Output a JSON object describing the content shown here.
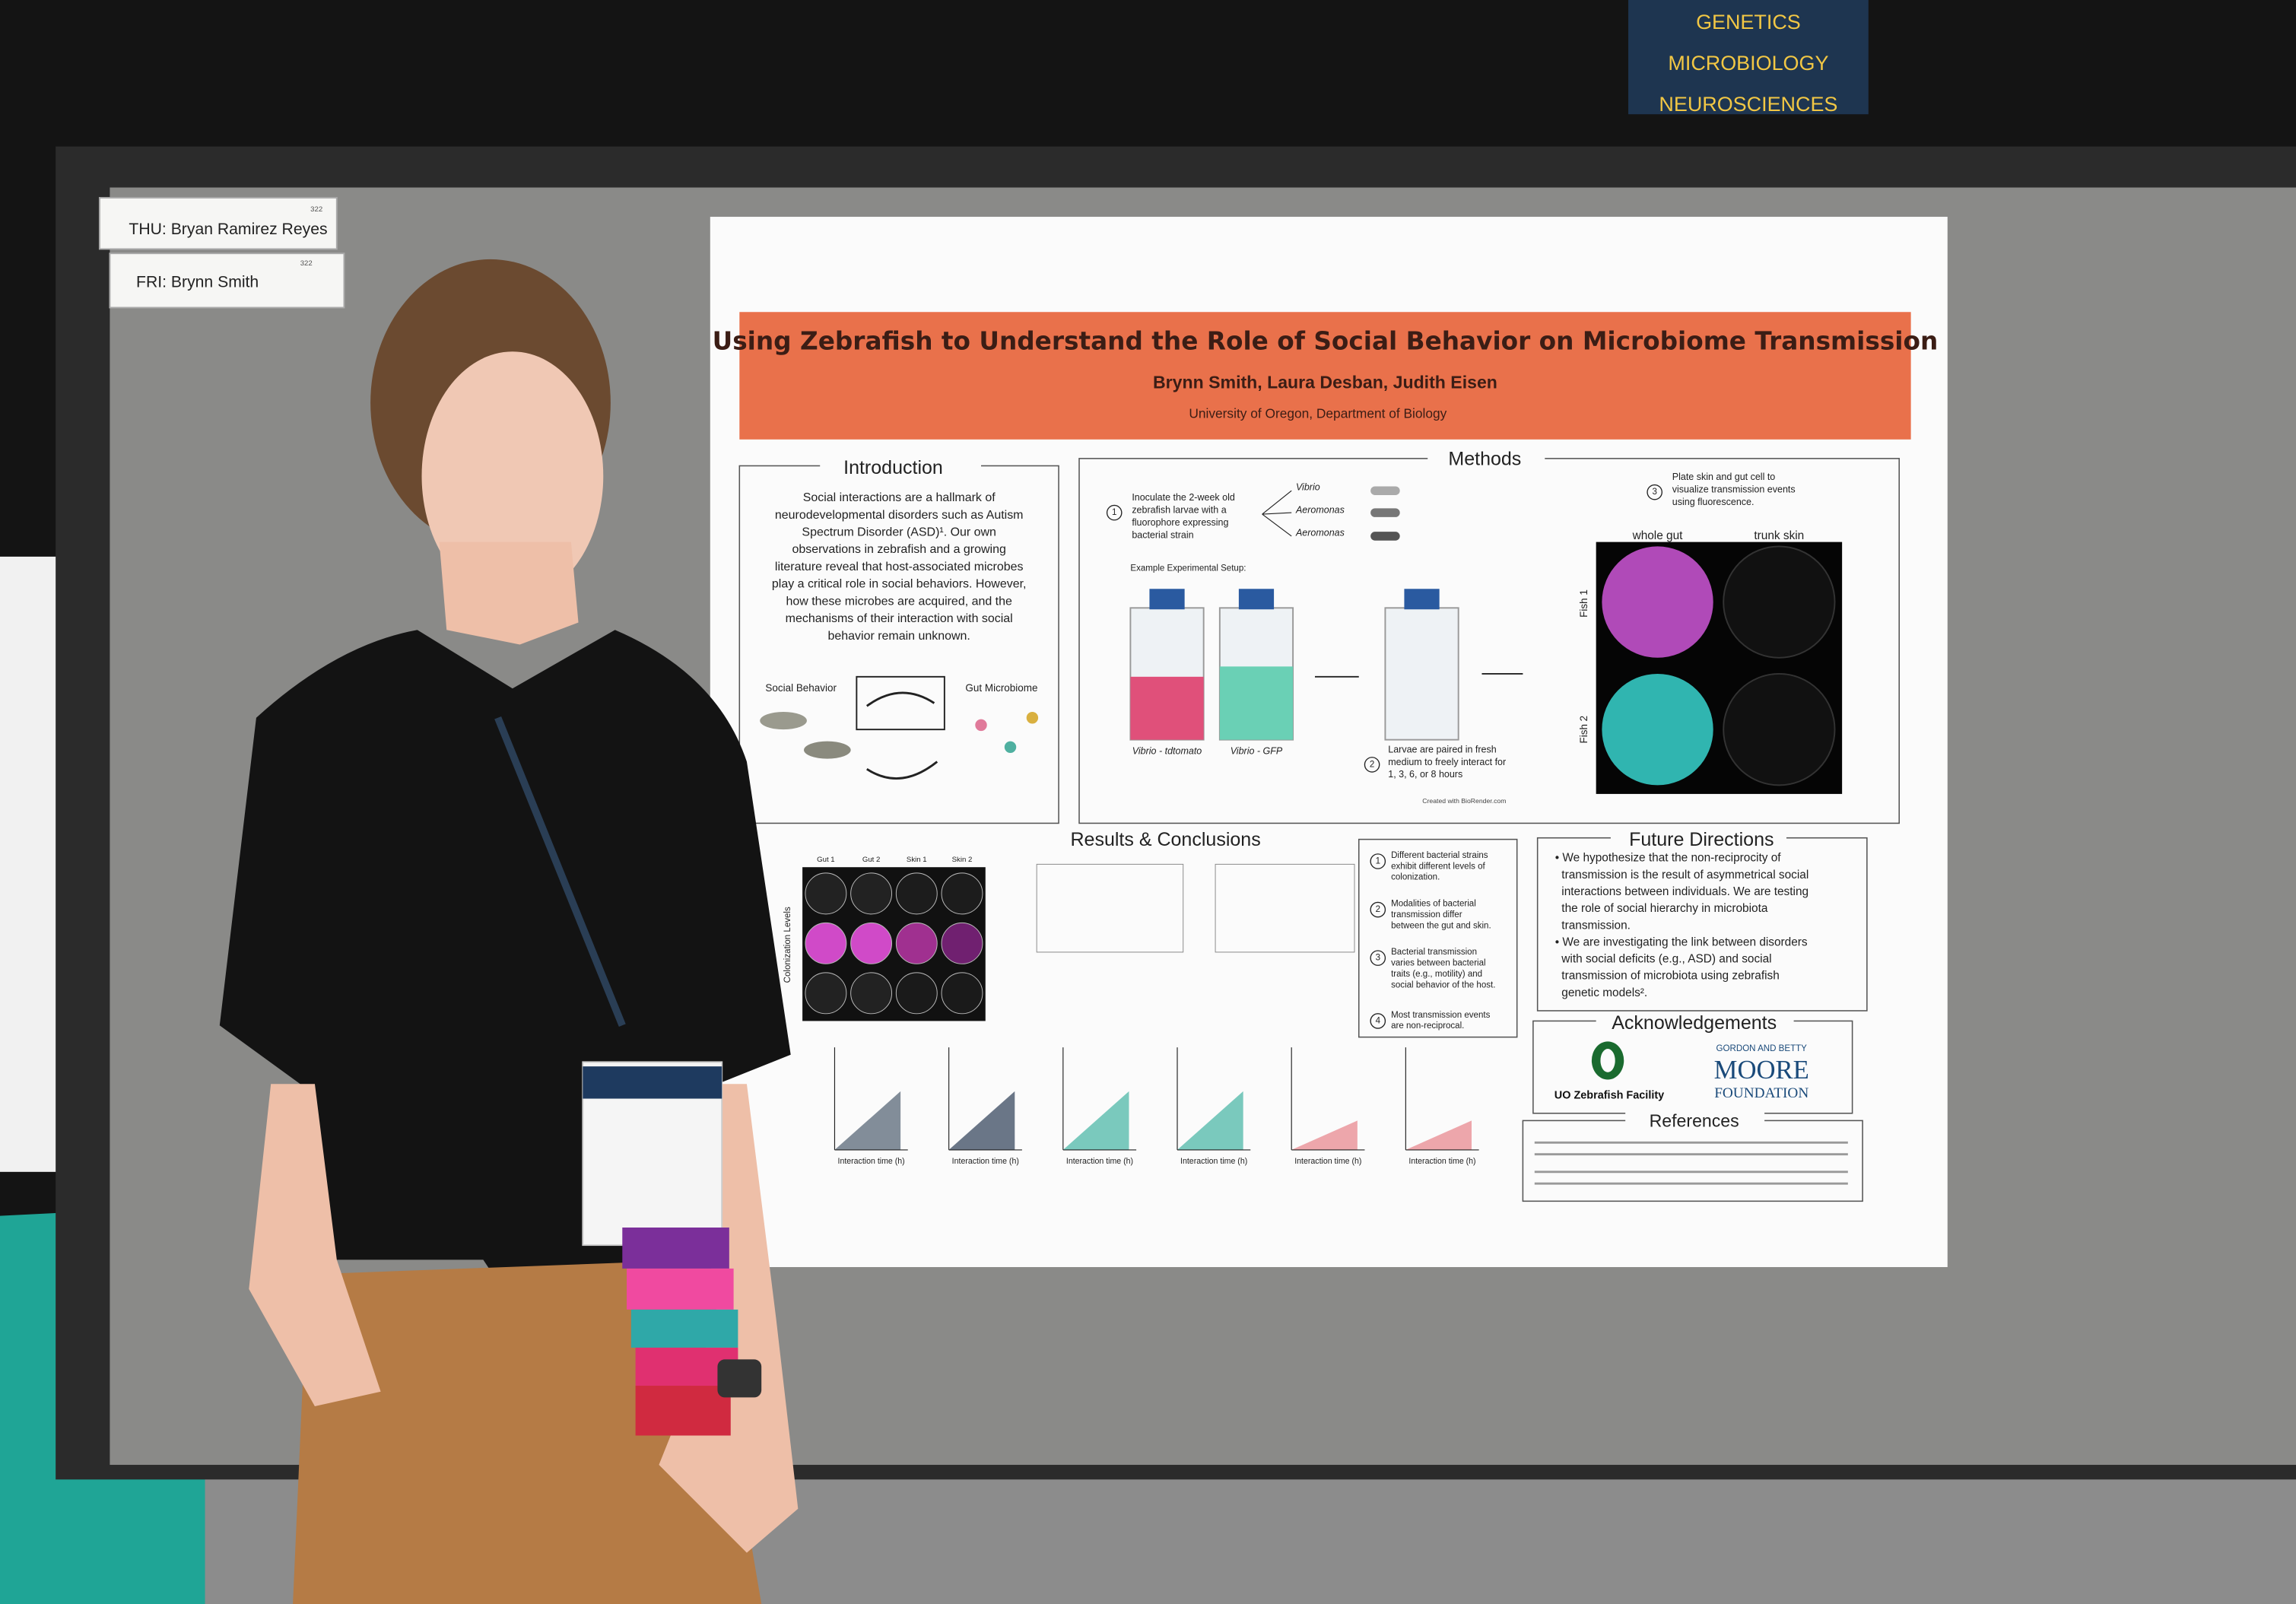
{
  "sign": [
    "GENETICS",
    "MICROBIOLOGY",
    "NEUROSCIENCES"
  ],
  "name_cards": [
    {
      "label": "THU: Bryan Ramirez Reyes",
      "number": "322"
    },
    {
      "label": "FRI: Brynn Smith",
      "number": "322"
    }
  ],
  "poster": {
    "title": "Using Zebrafish to Understand the Role of Social Behavior on Microbiome Transmission",
    "authors": "Brynn Smith, Laura Desban, Judith Eisen",
    "affiliation": "University of Oregon, Department of Biology",
    "introduction": {
      "heading": "Introduction",
      "lines": [
        "Social interactions are a hallmark of",
        "neurodevelopmental disorders such as Autism",
        "Spectrum Disorder (ASD)¹. Our own",
        "observations in zebrafish and a growing",
        "literature reveal that host-associated microbes",
        "play a critical role in social behaviors. However,",
        "how these microbes are acquired, and the",
        "mechanisms of their interaction with social",
        "behavior remain unknown."
      ],
      "social_behavior": "Social Behavior",
      "gut_microbiome": "Gut Microbiome"
    },
    "methods": {
      "heading": "Methods",
      "step1": [
        "Inoculate the 2-week old",
        "zebrafish larvae with a",
        "fluorophore expressing",
        "bacterial strain"
      ],
      "step2": [
        "Larvae are paired in fresh",
        "medium to freely interact for",
        "1, 3, 6, or 8 hours"
      ],
      "step3": [
        "Plate skin and gut cell to",
        "visualize transmission events",
        "using fluorescence."
      ],
      "strains": [
        "Vibrio",
        "Aeromonas",
        "Aeromonas"
      ],
      "setup": "Example Experimental Setup:",
      "flask1": "Vibrio - tdtomato",
      "flask2": "Vibrio - GFP",
      "whole_gut": "whole gut",
      "trunk_skin": "trunk skin",
      "fish1": "Fish 1",
      "fish2": "Fish 2",
      "credit": "Created with BioRender.com"
    },
    "results": {
      "heading": "Results & Conclusions",
      "columns": [
        "Gut 1",
        "Gut 2",
        "Skin 1",
        "Skin 2"
      ],
      "row_label": "Colonization Levels",
      "conclusions": [
        [
          "Different bacterial strains",
          "exhibit different levels of",
          "colonization."
        ],
        [
          "Modalities of bacterial",
          "transmission differ",
          "between the gut and skin."
        ],
        [
          "Bacterial transmission",
          "varies between bacterial",
          "traits (e.g., motility) and",
          "social behavior of the host."
        ],
        [
          "Most transmission events",
          "are non-reciprocal."
        ]
      ],
      "x_axis_label": "Interaction time (h)"
    },
    "future_directions": {
      "heading": "Future Directions",
      "lines": [
        "• We hypothesize that the non-reciprocity of",
        "  transmission is the result of asymmetrical social",
        "  interactions between individuals. We are testing",
        "  the role of social hierarchy in microbiota",
        "  transmission.",
        "• We are investigating the link between disorders",
        "  with social deficits (e.g., ASD) and social",
        "  transmission of microbiota using zebrafish",
        "  genetic models²."
      ]
    },
    "acknowledgements": {
      "heading": "Acknowledgements",
      "uo": "UO Zebrafish Facility",
      "moore_top": "GORDON AND BETTY",
      "moore": "MOORE",
      "foundation": "FOUNDATION"
    },
    "references": {
      "heading": "References"
    }
  }
}
